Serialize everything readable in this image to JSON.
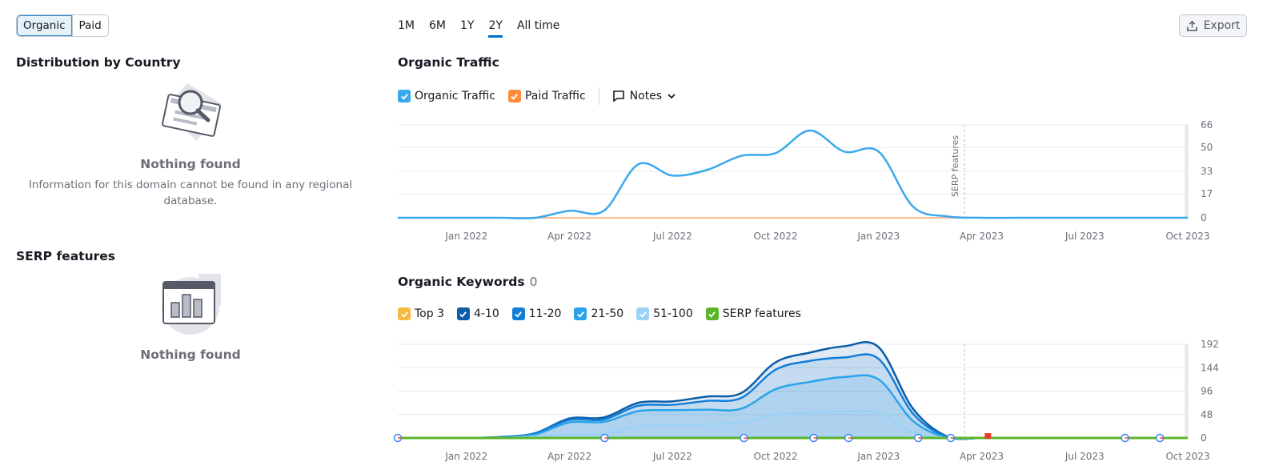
{
  "tabs": {
    "organic": "Organic",
    "paid": "Paid"
  },
  "periods": [
    "1M",
    "6M",
    "1Y",
    "2Y",
    "All time"
  ],
  "selected_period": "2Y",
  "export_label": "Export",
  "country": {
    "title": "Distribution by Country",
    "empty_title": "Nothing found",
    "empty_desc": "Information for this domain cannot be found in any regional database."
  },
  "serp": {
    "title": "SERP features",
    "empty_title": "Nothing found"
  },
  "traffic": {
    "title": "Organic Traffic",
    "legend": [
      {
        "label": "Organic Traffic",
        "color": "#3aa8ec"
      },
      {
        "label": "Paid Traffic",
        "color": "#ff8c3e"
      }
    ],
    "notes_label": "Notes",
    "annotation": "SERP features"
  },
  "keywords": {
    "title": "Organic Keywords",
    "count": "0",
    "legend": [
      {
        "label": "Top 3",
        "color": "#f5b93b"
      },
      {
        "label": "4-10",
        "color": "#0a5da8"
      },
      {
        "label": "11-20",
        "color": "#137ed8"
      },
      {
        "label": "21-50",
        "color": "#2aa3ea"
      },
      {
        "label": "51-100",
        "color": "#9bd2f6"
      },
      {
        "label": "SERP features",
        "color": "#5bb52a"
      }
    ]
  },
  "chart_data": [
    {
      "type": "line",
      "title": "Organic Traffic",
      "x_ticks": [
        "Jan 2022",
        "Apr 2022",
        "Jul 2022",
        "Oct 2022",
        "Jan 2023",
        "Apr 2023",
        "Jul 2023",
        "Oct 2023"
      ],
      "y_ticks": [
        0,
        17,
        33,
        50,
        66
      ],
      "ylim": [
        0,
        66
      ],
      "x": [
        "2021-11",
        "2021-12",
        "2022-01",
        "2022-02",
        "2022-03",
        "2022-04",
        "2022-05",
        "2022-06",
        "2022-07",
        "2022-08",
        "2022-09",
        "2022-10",
        "2022-11",
        "2022-12",
        "2023-01",
        "2023-02",
        "2023-03",
        "2023-04",
        "2023-05",
        "2023-06",
        "2023-07",
        "2023-08",
        "2023-09",
        "2023-10"
      ],
      "series": [
        {
          "name": "Organic Traffic",
          "color": "#3aa8ec",
          "values": [
            0,
            0,
            0,
            0,
            0,
            5,
            5,
            38,
            30,
            34,
            44,
            46,
            62,
            47,
            47,
            8,
            1,
            0,
            0,
            0,
            0,
            0,
            0,
            0
          ]
        },
        {
          "name": "Paid Traffic",
          "color": "#ff8c3e",
          "values": [
            0,
            0,
            0,
            0,
            0,
            0,
            0,
            0,
            0,
            0,
            0,
            0,
            0,
            0,
            0,
            0,
            0,
            0,
            0,
            0,
            0,
            0,
            0,
            0
          ]
        }
      ],
      "annotations": [
        {
          "x": "2023-03",
          "label": "SERP features"
        }
      ]
    },
    {
      "type": "area",
      "title": "Organic Keywords",
      "x_ticks": [
        "Jan 2022",
        "Apr 2022",
        "Jul 2022",
        "Oct 2022",
        "Jan 2023",
        "Apr 2023",
        "Jul 2023",
        "Oct 2023"
      ],
      "y_ticks": [
        0,
        48,
        96,
        144,
        192
      ],
      "ylim": [
        0,
        192
      ],
      "x": [
        "2021-11",
        "2021-12",
        "2022-01",
        "2022-02",
        "2022-03",
        "2022-04",
        "2022-05",
        "2022-06",
        "2022-07",
        "2022-08",
        "2022-09",
        "2022-10",
        "2022-11",
        "2022-12",
        "2023-01",
        "2023-02",
        "2023-03",
        "2023-04",
        "2023-05",
        "2023-06",
        "2023-07",
        "2023-08",
        "2023-09",
        "2023-10"
      ],
      "series": [
        {
          "name": "Top 3",
          "color": "#f5b93b",
          "values": [
            0,
            0,
            0,
            0,
            0,
            0,
            0,
            0,
            0,
            0,
            0,
            0,
            0,
            0,
            0,
            0,
            0,
            0,
            0,
            0,
            0,
            0,
            0,
            0
          ]
        },
        {
          "name": "4-10",
          "color": "#0a5da8",
          "values": [
            0,
            0,
            0,
            2,
            10,
            40,
            42,
            72,
            75,
            85,
            92,
            155,
            175,
            188,
            186,
            60,
            3,
            0,
            0,
            0,
            0,
            0,
            0,
            0
          ]
        },
        {
          "name": "11-20",
          "color": "#137ed8",
          "values": [
            0,
            0,
            0,
            2,
            9,
            37,
            38,
            66,
            68,
            76,
            82,
            140,
            158,
            165,
            162,
            50,
            2,
            0,
            0,
            0,
            0,
            0,
            0,
            0
          ]
        },
        {
          "name": "21-50",
          "color": "#2aa3ea",
          "values": [
            0,
            0,
            0,
            1,
            7,
            32,
            33,
            55,
            57,
            58,
            60,
            100,
            115,
            125,
            120,
            35,
            1,
            0,
            0,
            0,
            0,
            0,
            0,
            0
          ]
        },
        {
          "name": "51-100",
          "color": "#9bd2f6",
          "values": [
            0,
            0,
            0,
            0,
            3,
            8,
            9,
            25,
            27,
            28,
            32,
            48,
            52,
            55,
            52,
            12,
            0,
            0,
            0,
            0,
            0,
            0,
            0,
            0
          ]
        },
        {
          "name": "SERP features",
          "color": "#5bb52a",
          "values": [
            0,
            0,
            0,
            0,
            0,
            0,
            0,
            0,
            0,
            0,
            0,
            0,
            0,
            0,
            0,
            0,
            0,
            0,
            0,
            0,
            0,
            0,
            0,
            0
          ]
        }
      ],
      "annotations": [
        {
          "x": "2023-03",
          "label": "SERP features"
        }
      ]
    }
  ]
}
